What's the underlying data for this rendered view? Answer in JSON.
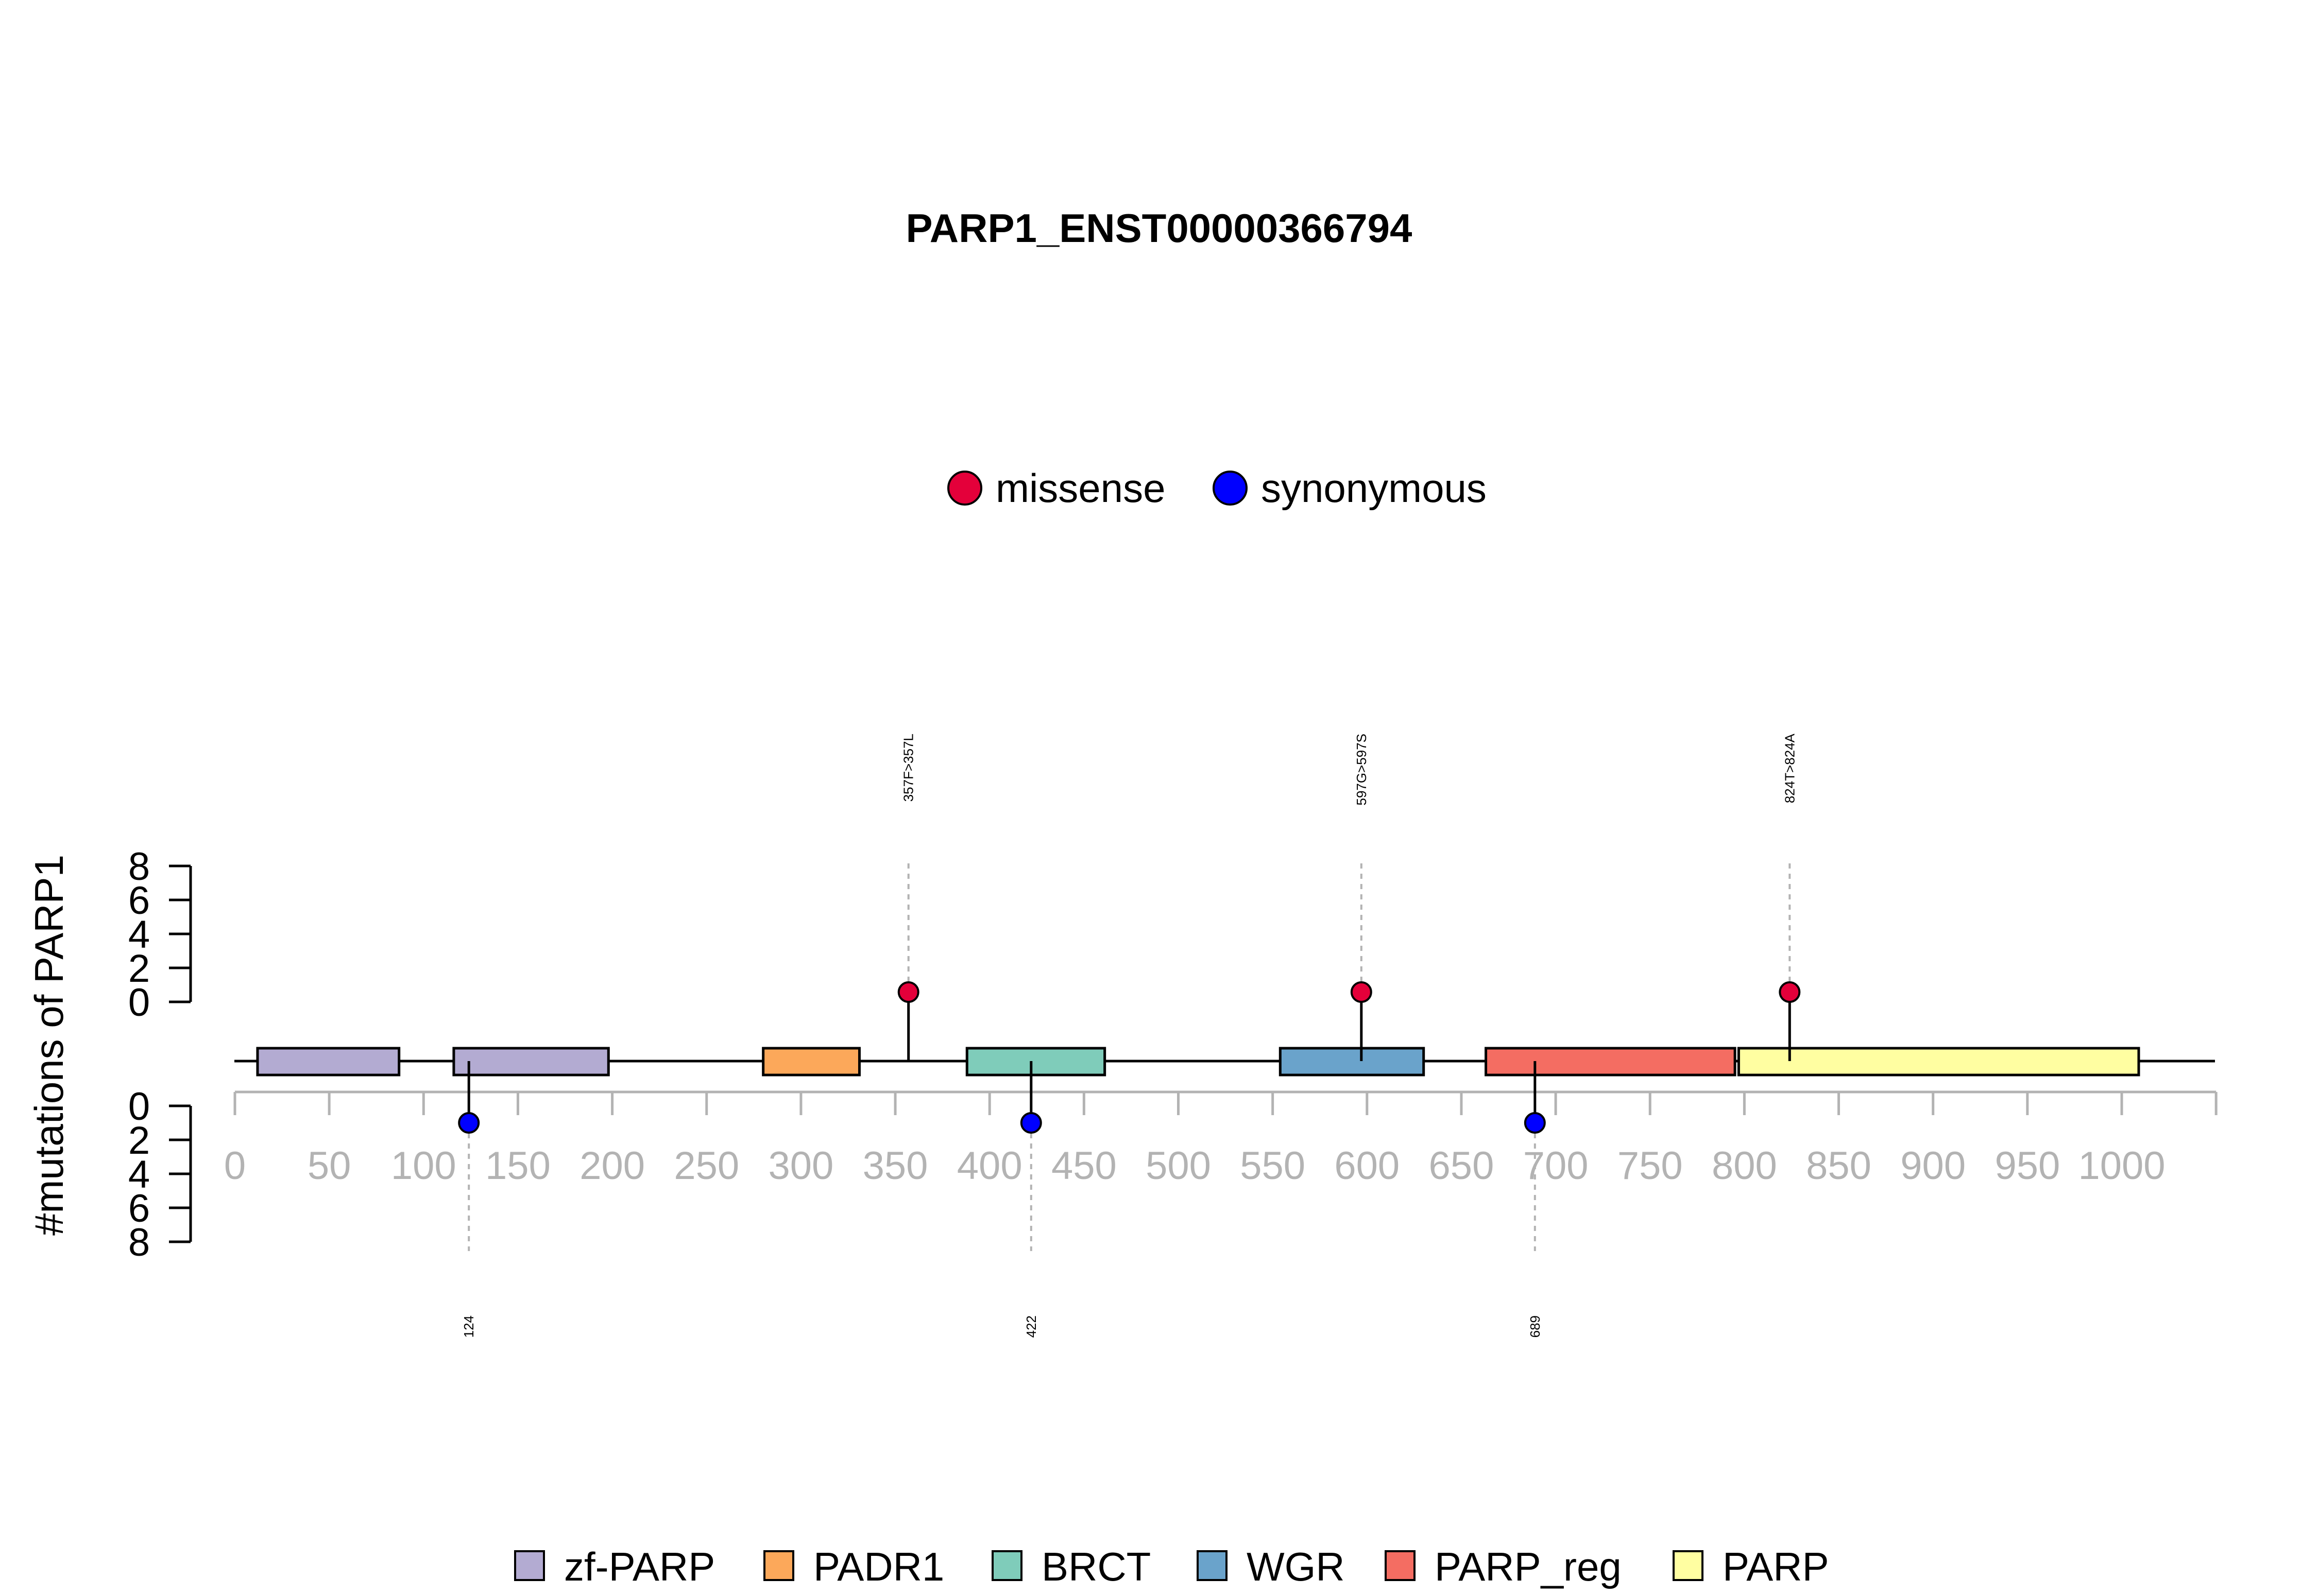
{
  "chart_data": {
    "type": "lollipop",
    "title": "PARP1_ENST00000366794",
    "ylabel": "#mutations of PARP1",
    "xlim": [
      0,
      1050
    ],
    "x_ticks": [
      0,
      50,
      100,
      150,
      200,
      250,
      300,
      350,
      400,
      450,
      500,
      550,
      600,
      650,
      700,
      750,
      800,
      850,
      900,
      950,
      1000
    ],
    "y_ticks": [
      0,
      2,
      4,
      6,
      8
    ],
    "y_range": [
      0,
      8
    ],
    "mutation_legend": [
      {
        "name": "missense",
        "color": "#e4003a"
      },
      {
        "name": "synonymous",
        "color": "#0000ff"
      }
    ],
    "domain_legend": [
      {
        "name": "zf-PARP",
        "color": "#b3abd2"
      },
      {
        "name": "PADR1",
        "color": "#fca85a"
      },
      {
        "name": "BRCT",
        "color": "#7fccba"
      },
      {
        "name": "WGR",
        "color": "#6aa3cb"
      },
      {
        "name": "PARP_reg",
        "color": "#f46d62"
      },
      {
        "name": "PARP",
        "color": "#fffea1"
      }
    ],
    "domains": [
      {
        "name": "zf-PARP",
        "start": 12,
        "end": 87
      },
      {
        "name": "zf-PARP",
        "start": 116,
        "end": 198
      },
      {
        "name": "PADR1",
        "start": 280,
        "end": 331
      },
      {
        "name": "BRCT",
        "start": 388,
        "end": 461
      },
      {
        "name": "WGR",
        "start": 554,
        "end": 630
      },
      {
        "name": "PARP_reg",
        "start": 663,
        "end": 795
      },
      {
        "name": "PARP",
        "start": 797,
        "end": 1009
      }
    ],
    "mutations": [
      {
        "position": 357,
        "count": 1,
        "type": "missense",
        "label": "357F>357L"
      },
      {
        "position": 597,
        "count": 1,
        "type": "missense",
        "label": "597G>597S"
      },
      {
        "position": 824,
        "count": 1,
        "type": "missense",
        "label": "824T>824A"
      },
      {
        "position": 124,
        "count": 1,
        "type": "synonymous",
        "label": "124"
      },
      {
        "position": 422,
        "count": 1,
        "type": "synonymous",
        "label": "422"
      },
      {
        "position": 689,
        "count": 1,
        "type": "synonymous",
        "label": "689"
      }
    ]
  }
}
